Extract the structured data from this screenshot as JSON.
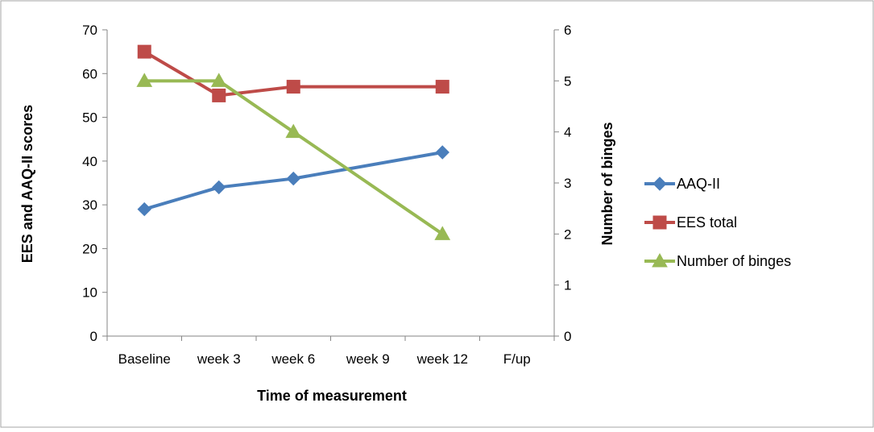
{
  "chart_data": {
    "type": "line",
    "categories": [
      "Baseline",
      "week 3",
      "week 6",
      "week 9",
      "week 12",
      "F/up"
    ],
    "xlabel": "Time of measurement",
    "ylabel": "EES and AAQ-II scores",
    "y2label": "Number of binges",
    "ylim": [
      0,
      70
    ],
    "yticks": [
      0,
      10,
      20,
      30,
      40,
      50,
      60,
      70
    ],
    "y2lim": [
      0,
      6
    ],
    "y2ticks": [
      0,
      1,
      2,
      3,
      4,
      5,
      6
    ],
    "grid": false,
    "legend_position": "right",
    "series": [
      {
        "name": "AAQ-II",
        "axis": "left",
        "color": "#4a7ebb",
        "marker": "diamond",
        "values": [
          29,
          34,
          36,
          null,
          42,
          null
        ]
      },
      {
        "name": "EES total",
        "axis": "left",
        "color": "#be4b48",
        "marker": "square",
        "values": [
          65,
          55,
          57,
          null,
          57,
          null
        ]
      },
      {
        "name": "Number of binges",
        "axis": "right",
        "color": "#98b954",
        "marker": "triangle",
        "values": [
          5,
          5,
          4,
          null,
          2,
          null
        ]
      }
    ]
  }
}
